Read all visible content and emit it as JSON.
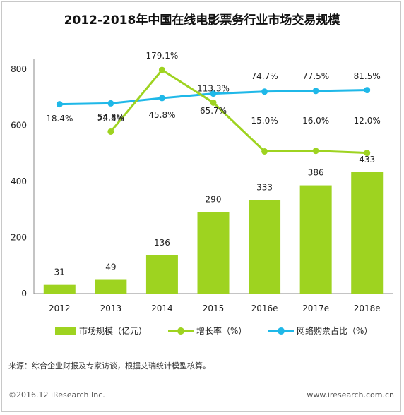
{
  "title": "2012-2018年中国在线电影票务行业市场交易规模",
  "chart_data": {
    "type": "bar",
    "categories": [
      "2012",
      "2013",
      "2014",
      "2015",
      "2016e",
      "2017e",
      "2018e"
    ],
    "ylim": [
      0,
      800
    ],
    "yticks": [
      0,
      200,
      400,
      600,
      800
    ],
    "series": [
      {
        "name": "市场规模（亿元）",
        "type": "bar",
        "color": "#9ed320",
        "values": [
          31,
          49,
          136,
          290,
          333,
          386,
          433
        ],
        "labels": [
          "31",
          "49",
          "136",
          "290",
          "333",
          "386",
          "433"
        ]
      },
      {
        "name": "增长率（%）",
        "type": "line",
        "color": "#9ed320",
        "values": [
          null,
          54.8,
          179.1,
          113.3,
          15.0,
          16.0,
          12.0
        ],
        "labels": [
          "",
          "54.8%",
          "179.1%",
          "113.3%",
          "15.0%",
          "16.0%",
          "12.0%"
        ]
      },
      {
        "name": "网络购票占比（%）",
        "type": "line",
        "color": "#1fb8e8",
        "values": [
          18.4,
          22.3,
          45.8,
          65.7,
          74.7,
          77.5,
          81.5
        ],
        "labels": [
          "18.4%",
          "22.3%",
          "45.8%",
          "65.7%",
          "74.7%",
          "77.5%",
          "81.5%"
        ]
      }
    ],
    "legend_position": "bottom",
    "grid": false
  },
  "source": "来源：综合企业财报及专家访谈，根据艾瑞统计模型核算。",
  "copyright": "©2016.12 iResearch Inc.",
  "website": "www.iresearch.com.cn"
}
